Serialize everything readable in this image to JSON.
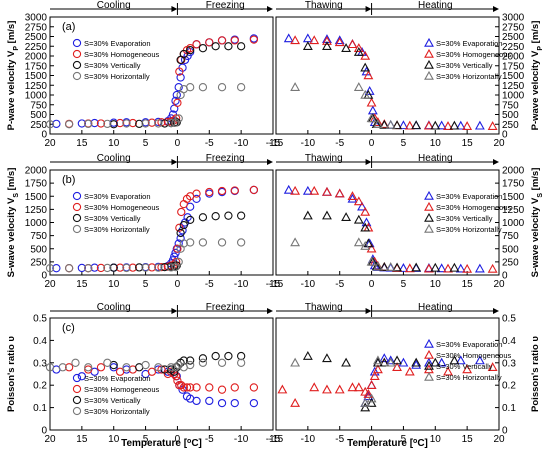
{
  "figure": {
    "phases_left": [
      "Cooling",
      "Freezing"
    ],
    "phases_right": [
      "Thawing",
      "Heating"
    ],
    "x_title_left": "Temperature [",
    "x_title_right": "Temperature [",
    "x_title_sup": "o",
    "x_title_end": "C]"
  },
  "series_colors": [
    "#1f1fe0",
    "#e01f1f",
    "#111111",
    "#777777"
  ],
  "chart_data": [
    {
      "type": "scatter",
      "label": "(a)",
      "ylabel_left": "P-wave velocity V",
      "ylabel_right": "P-wave velocity V",
      "ylabel_sub": "P",
      "ylabel_unit": " [m/s]",
      "ylim": [
        0,
        3000
      ],
      "yticks": [
        0,
        250,
        500,
        750,
        1000,
        1250,
        1500,
        1750,
        2000,
        2250,
        2500,
        2750,
        3000
      ],
      "left_xlim": [
        20,
        -15
      ],
      "left_xticks": [
        20,
        15,
        10,
        5,
        0,
        -5,
        -10,
        -15
      ],
      "right_xlim": [
        -15,
        20
      ],
      "right_xticks": [
        -15,
        -10,
        -5,
        0,
        5,
        10,
        15,
        20
      ],
      "legend_left": [
        "S=30% Evaporation",
        "S=30% Homogeneous",
        "S=30% Vertically",
        "S=30% Horizontally"
      ],
      "legend_right": [
        "S=30% Evaporation",
        "S=30% Homogeneous",
        "S=30% Vertically",
        "S=30% Horizontally"
      ],
      "series_left": [
        {
          "name": "S=30% Evaporation",
          "x": [
            19,
            15,
            13,
            10,
            8,
            5,
            3,
            1.5,
            1,
            0.7,
            0.5,
            0.3,
            0.1,
            -0.2,
            -0.5,
            -0.8,
            -1.2,
            -1.6,
            -2,
            -3,
            -5,
            -7,
            -9,
            -12
          ],
          "y": [
            260,
            270,
            280,
            290,
            300,
            300,
            310,
            330,
            400,
            500,
            650,
            850,
            1000,
            1200,
            1450,
            1700,
            1900,
            2000,
            2100,
            2300,
            2350,
            2400,
            2420,
            2450
          ]
        },
        {
          "name": "S=30% Homogeneous",
          "x": [
            17,
            14,
            12,
            9,
            7,
            4,
            2.5,
            1.5,
            1,
            0.5,
            0.2,
            0,
            -0.3,
            -0.6,
            -1,
            -1.5,
            -2,
            -3,
            -5,
            -7,
            -9,
            -12
          ],
          "y": [
            260,
            270,
            270,
            280,
            280,
            290,
            300,
            310,
            320,
            350,
            400,
            800,
            1600,
            1900,
            2050,
            2150,
            2200,
            2300,
            2350,
            2400,
            2400,
            2420
          ]
        },
        {
          "name": "S=30% Vertically",
          "x": [
            10,
            6,
            2,
            1,
            0.5,
            0.1,
            -0.5,
            -1,
            -2,
            -4,
            -6,
            -8,
            -10
          ],
          "y": [
            250,
            260,
            270,
            280,
            290,
            300,
            1900,
            2050,
            2150,
            2200,
            2250,
            2250,
            2250
          ]
        },
        {
          "name": "S=30% Horizontally",
          "x": [
            20,
            17,
            14,
            11,
            8,
            5,
            3,
            1,
            0.3,
            -0.2,
            -0.5,
            -1,
            -2,
            -4,
            -7,
            -10
          ],
          "y": [
            250,
            250,
            260,
            260,
            270,
            270,
            270,
            280,
            290,
            400,
            1000,
            1150,
            1200,
            1200,
            1200,
            1200
          ]
        }
      ],
      "series_right": [
        {
          "name": "S=30% Evaporation",
          "x": [
            -13,
            -10,
            -7,
            -5,
            -3,
            -1.5,
            -0.8,
            -0.3,
            0.2,
            0.5,
            1,
            2,
            3,
            5,
            7,
            9,
            11,
            14,
            17
          ],
          "y": [
            2450,
            2450,
            2430,
            2400,
            2300,
            2100,
            1600,
            1100,
            600,
            300,
            250,
            240,
            230,
            220,
            220,
            220,
            215,
            210,
            210
          ]
        },
        {
          "name": "S=30% Homogeneous",
          "x": [
            -12,
            -9,
            -7,
            -5,
            -3,
            -2,
            -1,
            -0.5,
            0,
            0.5,
            1,
            2,
            4,
            6,
            9,
            12,
            15,
            19
          ],
          "y": [
            2400,
            2400,
            2380,
            2350,
            2300,
            2200,
            2000,
            1500,
            800,
            400,
            300,
            250,
            220,
            210,
            210,
            200,
            200,
            200
          ]
        },
        {
          "name": "S=30% Vertically",
          "x": [
            -10,
            -7,
            -4,
            -2,
            -1,
            -0.5,
            0.2,
            0.8,
            2,
            4,
            7,
            10,
            13
          ],
          "y": [
            2250,
            2250,
            2200,
            2100,
            1700,
            1000,
            400,
            250,
            230,
            220,
            220,
            210,
            210
          ]
        },
        {
          "name": "S=30% Horizontally",
          "x": [
            -12,
            -2,
            -1,
            0,
            1,
            3
          ],
          "y": [
            1200,
            1200,
            1000,
            400,
            250,
            230
          ]
        }
      ]
    },
    {
      "type": "scatter",
      "label": "(b)",
      "ylabel_left": "S-wave velocity V",
      "ylabel_right": "S-wave velocity V",
      "ylabel_sub": "S",
      "ylabel_unit": " [m/s]",
      "ylim": [
        0,
        2000
      ],
      "yticks": [
        0,
        250,
        500,
        750,
        1000,
        1250,
        1500,
        1750,
        2000
      ],
      "left_xlim": [
        20,
        -15
      ],
      "left_xticks": [
        20,
        15,
        10,
        5,
        0,
        -5,
        -10,
        -15
      ],
      "right_xlim": [
        -15,
        20
      ],
      "right_xticks": [
        -15,
        -10,
        -5,
        0,
        5,
        10,
        15,
        20
      ],
      "legend_left": [
        "S=30% Evaporation",
        "S=30% Homogeneous",
        "S=30% Vertically",
        "S=30% Horizontally"
      ],
      "legend_right": [
        "S=30% Evaporation",
        "S=30% Homogeneous",
        "S=30% Vertically",
        "S=30% Horizontally"
      ],
      "series_left": [
        {
          "name": "S=30% Evaporation",
          "x": [
            19,
            15,
            13,
            10,
            8,
            5,
            3,
            1.5,
            1,
            0.7,
            0.5,
            0.3,
            0.1,
            -0.2,
            -0.5,
            -0.8,
            -1.2,
            -1.6,
            -2,
            -3,
            -5,
            -7,
            -9,
            -12
          ],
          "y": [
            130,
            135,
            140,
            140,
            145,
            150,
            155,
            170,
            220,
            280,
            350,
            420,
            500,
            600,
            700,
            850,
            1000,
            1100,
            1300,
            1450,
            1550,
            1580,
            1600,
            1620
          ]
        },
        {
          "name": "S=30% Homogeneous",
          "x": [
            17,
            14,
            12,
            9,
            7,
            4,
            2.5,
            1.5,
            1,
            0.5,
            0.2,
            0,
            -0.3,
            -0.6,
            -1,
            -1.5,
            -2,
            -3,
            -5,
            -7,
            -9,
            -12
          ],
          "y": [
            130,
            130,
            135,
            140,
            140,
            145,
            150,
            160,
            180,
            200,
            250,
            500,
            900,
            1200,
            1350,
            1450,
            1500,
            1550,
            1580,
            1600,
            1610,
            1620
          ]
        },
        {
          "name": "S=30% Vertically",
          "x": [
            10,
            6,
            2,
            1,
            0.5,
            0.1,
            -0.5,
            -1,
            -2,
            -4,
            -6,
            -8,
            -10
          ],
          "y": [
            140,
            145,
            150,
            160,
            170,
            180,
            800,
            950,
            1050,
            1100,
            1120,
            1130,
            1130
          ]
        },
        {
          "name": "S=30% Horizontally",
          "x": [
            20,
            17,
            14,
            11,
            8,
            5,
            3,
            1,
            0.3,
            -0.2,
            -0.5,
            -1,
            -2,
            -4,
            -7,
            -10
          ],
          "y": [
            130,
            130,
            130,
            135,
            135,
            140,
            140,
            145,
            150,
            250,
            500,
            600,
            620,
            620,
            620,
            620
          ]
        }
      ],
      "series_right": [
        {
          "name": "S=30% Evaporation",
          "x": [
            -13,
            -10,
            -7,
            -5,
            -3,
            -1.5,
            -0.8,
            -0.3,
            0.2,
            0.5,
            1,
            2,
            3,
            5,
            7,
            9,
            11,
            14,
            17
          ],
          "y": [
            1620,
            1600,
            1580,
            1550,
            1450,
            1300,
            1000,
            600,
            300,
            180,
            150,
            140,
            135,
            130,
            130,
            130,
            125,
            120,
            120
          ]
        },
        {
          "name": "S=30% Homogeneous",
          "x": [
            -12,
            -9,
            -7,
            -5,
            -3,
            -2,
            -1,
            -0.5,
            0,
            0.5,
            1,
            2,
            4,
            6,
            9,
            12,
            15,
            19
          ],
          "y": [
            1600,
            1600,
            1580,
            1550,
            1500,
            1400,
            1200,
            900,
            500,
            250,
            170,
            150,
            130,
            125,
            120,
            120,
            115,
            115
          ]
        },
        {
          "name": "S=30% Vertically",
          "x": [
            -10,
            -7,
            -4,
            -2,
            -1,
            -0.5,
            0.2,
            0.8,
            2,
            4,
            7,
            10,
            13
          ],
          "y": [
            1130,
            1130,
            1100,
            1050,
            900,
            600,
            250,
            160,
            150,
            140,
            140,
            135,
            135
          ]
        },
        {
          "name": "S=30% Horizontally",
          "x": [
            -12,
            -2,
            -1,
            0,
            1,
            3
          ],
          "y": [
            620,
            620,
            550,
            250,
            160,
            150
          ]
        }
      ]
    },
    {
      "type": "scatter",
      "label": "(c)",
      "ylabel_left": "Poisson's ratio υ",
      "ylabel_right": "Poisson's ratio υ",
      "ylabel_sub": "",
      "ylabel_unit": "",
      "ylim": [
        0,
        0.5
      ],
      "yticks": [
        0,
        0.1,
        0.2,
        0.3,
        0.4,
        0.5
      ],
      "left_xlim": [
        20,
        -15
      ],
      "left_xticks": [
        20,
        15,
        10,
        5,
        0,
        -5,
        -10,
        -15
      ],
      "right_xlim": [
        -15,
        20
      ],
      "right_xticks": [
        -15,
        -10,
        -5,
        0,
        5,
        10,
        15,
        20
      ],
      "legend_left": [
        "S=30% Evaporation",
        "S=30% Homogeneous",
        "S=30% Vertically",
        "S=30% Horizontally"
      ],
      "legend_right": [
        "S=30% Evaporation",
        "S=30% Homogeneous",
        "S=30% Vertically",
        "S=30% Horizontally"
      ],
      "series_left": [
        {
          "name": "S=30% Evaporation",
          "x": [
            19,
            15,
            13,
            10,
            8,
            5,
            3,
            1.5,
            1,
            0.5,
            0.1,
            -0.3,
            -0.8,
            -1.5,
            -2,
            -3,
            -5,
            -7,
            -9,
            -12
          ],
          "y": [
            0.27,
            0.24,
            0.26,
            0.28,
            0.27,
            0.25,
            0.27,
            0.26,
            0.27,
            0.25,
            0.24,
            0.2,
            0.18,
            0.15,
            0.14,
            0.13,
            0.13,
            0.12,
            0.12,
            0.12
          ]
        },
        {
          "name": "S=30% Homogeneous",
          "x": [
            17,
            14,
            12,
            9,
            7,
            4,
            2.5,
            1.5,
            1,
            0.5,
            0.2,
            0,
            -0.3,
            -0.6,
            -1,
            -1.5,
            -2,
            -3,
            -5,
            -7,
            -9,
            -12
          ],
          "y": [
            0.28,
            0.27,
            0.28,
            0.26,
            0.27,
            0.26,
            0.27,
            0.25,
            0.26,
            0.25,
            0.24,
            0.22,
            0.2,
            0.2,
            0.19,
            0.19,
            0.19,
            0.19,
            0.19,
            0.18,
            0.19,
            0.19
          ]
        },
        {
          "name": "S=30% Vertically",
          "x": [
            10,
            6,
            2,
            1,
            0.5,
            0.1,
            -0.5,
            -1,
            -2,
            -4,
            -6,
            -8,
            -10
          ],
          "y": [
            0.29,
            0.28,
            0.27,
            0.27,
            0.26,
            0.28,
            0.3,
            0.31,
            0.31,
            0.32,
            0.33,
            0.33,
            0.33
          ]
        },
        {
          "name": "S=30% Horizontally",
          "x": [
            20,
            18,
            16,
            14,
            11,
            8,
            5,
            3,
            1,
            0.3,
            -0.2,
            -1,
            -2,
            -4,
            -7,
            -10
          ],
          "y": [
            0.28,
            0.28,
            0.3,
            0.28,
            0.3,
            0.28,
            0.29,
            0.28,
            0.28,
            0.28,
            0.29,
            0.28,
            0.29,
            0.3,
            0.3,
            0.3
          ]
        }
      ],
      "series_right": [
        {
          "name": "S=30% Evaporation",
          "x": [
            -1,
            -0.5,
            0,
            0.5,
            1,
            2,
            3,
            5,
            7,
            9,
            11,
            14,
            17
          ],
          "y": [
            0.12,
            0.15,
            0.2,
            0.26,
            0.3,
            0.32,
            0.31,
            0.3,
            0.29,
            0.3,
            0.3,
            0.31,
            0.31
          ]
        },
        {
          "name": "S=30% Homogeneous",
          "x": [
            -14,
            -12,
            -9,
            -7,
            -5,
            -3,
            -2,
            -1,
            -0.5,
            0,
            0.5,
            1,
            2,
            4,
            6,
            9,
            12,
            15,
            19
          ],
          "y": [
            0.18,
            0.12,
            0.19,
            0.18,
            0.18,
            0.19,
            0.19,
            0.17,
            0.16,
            0.2,
            0.24,
            0.27,
            0.3,
            0.28,
            0.26,
            0.27,
            0.26,
            0.27,
            0.28
          ]
        },
        {
          "name": "S=30% Vertically",
          "x": [
            -10,
            -7,
            -4,
            -1,
            0,
            1,
            2,
            4,
            7,
            10,
            13
          ],
          "y": [
            0.33,
            0.32,
            0.3,
            0.1,
            0.12,
            0.3,
            0.3,
            0.31,
            0.3,
            0.3,
            0.31
          ]
        },
        {
          "name": "S=30% Horizontally",
          "x": [
            -12,
            -1,
            0,
            1,
            3
          ],
          "y": [
            0.3,
            0.12,
            0.14,
            0.31,
            0.3
          ]
        }
      ]
    }
  ]
}
